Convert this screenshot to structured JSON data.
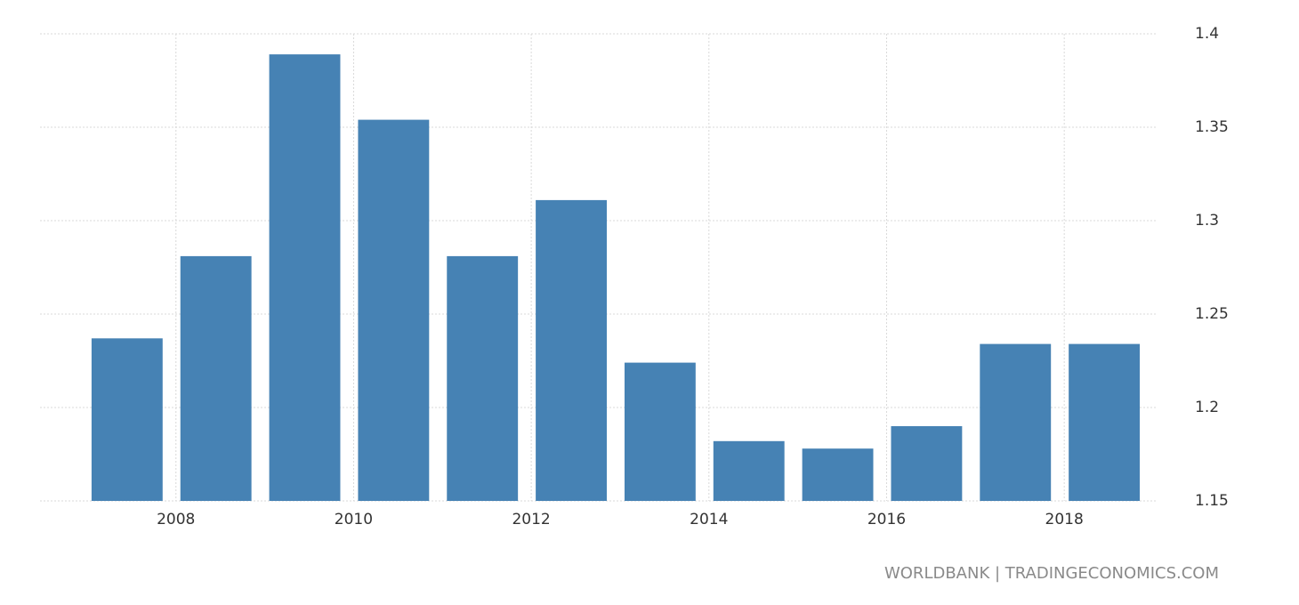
{
  "chart_data": {
    "type": "bar",
    "x": [
      2007,
      2008,
      2009,
      2010,
      2011,
      2012,
      2013,
      2014,
      2015,
      2016,
      2017,
      2018
    ],
    "values": [
      1.237,
      1.281,
      1.389,
      1.354,
      1.281,
      1.311,
      1.224,
      1.182,
      1.178,
      1.19,
      1.234,
      1.234
    ],
    "color": "#4682b4",
    "xlim": [
      2006.47,
      2019.04
    ],
    "xticks": [
      2008,
      2010,
      2012,
      2014,
      2016,
      2018
    ],
    "ylim": [
      1.15,
      1.4
    ],
    "yticks": [
      1.15,
      1.2,
      1.25,
      1.3,
      1.35,
      1.4
    ],
    "grid": true,
    "source": "WORLDBANK | TRADINGECONOMICS.COM"
  }
}
